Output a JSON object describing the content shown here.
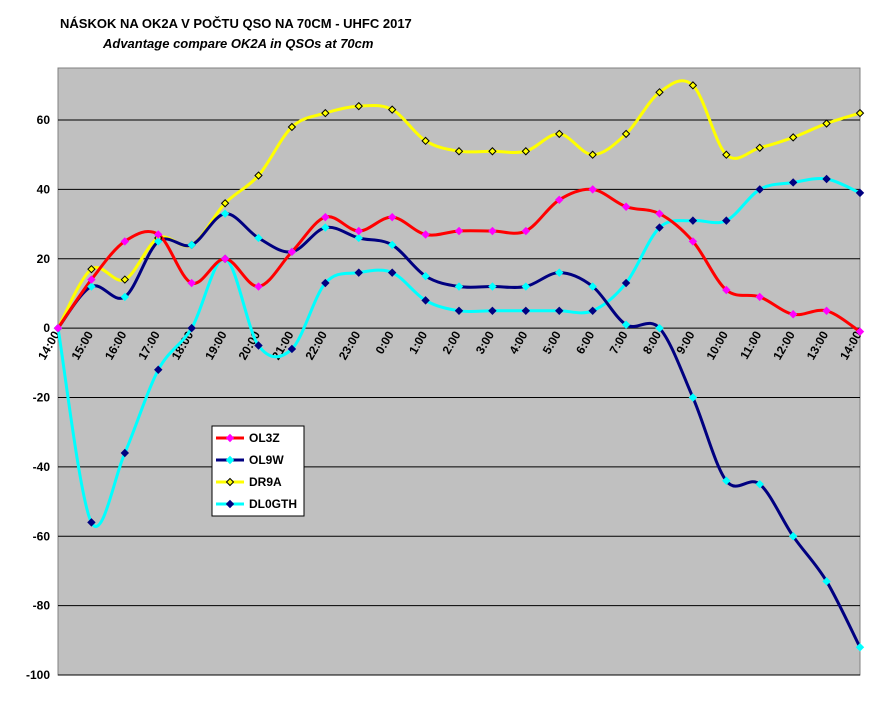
{
  "chart_data": {
    "type": "line",
    "title": "NÁSKOK NA OK2A V POČTU QSO NA 70CM - UHFC 2017",
    "subtitle": "Advantage compare OK2A in QSOs at 70cm",
    "categories": [
      "14:00",
      "15:00",
      "16:00",
      "17:00",
      "18:00",
      "19:00",
      "20:00",
      "21:00",
      "22:00",
      "23:00",
      "0:00",
      "1:00",
      "2:00",
      "3:00",
      "4:00",
      "5:00",
      "6:00",
      "7:00",
      "8:00",
      "9:00",
      "10:00",
      "11:00",
      "12:00",
      "13:00",
      "14:00"
    ],
    "yticks": [
      60,
      40,
      20,
      0,
      -20,
      -40,
      -60,
      -80,
      -100
    ],
    "ylim": [
      -100,
      75
    ],
    "grid": true,
    "legend_position": "center-left",
    "series": [
      {
        "name": "OL3Z",
        "color": "#ff0000",
        "marker_color": "#ff00ff",
        "values": [
          0,
          14,
          25,
          27,
          13,
          20,
          12,
          22,
          32,
          28,
          32,
          27,
          28,
          28,
          28,
          37,
          40,
          35,
          33,
          25,
          11,
          9,
          4,
          5,
          -1
        ]
      },
      {
        "name": "OL9W",
        "color": "#000080",
        "marker_color": "#00ffff",
        "values": [
          0,
          12,
          9,
          25,
          24,
          33,
          26,
          22,
          29,
          26,
          24,
          15,
          12,
          12,
          12,
          16,
          12,
          1,
          0,
          -20,
          -44,
          -45,
          -60,
          -73,
          -92
        ]
      },
      {
        "name": "DR9A",
        "color": "#ffff00",
        "marker_color": "#000000",
        "values": [
          0,
          17,
          14,
          26,
          24,
          36,
          44,
          58,
          62,
          64,
          63,
          54,
          51,
          51,
          51,
          56,
          50,
          56,
          68,
          70,
          50,
          52,
          55,
          59,
          62
        ]
      },
      {
        "name": "DL0GTH",
        "color": "#00ffff",
        "marker_color": "#000080",
        "values": [
          0,
          -56,
          -36,
          -12,
          0,
          20,
          -5,
          -6,
          13,
          16,
          16,
          8,
          5,
          5,
          5,
          5,
          5,
          13,
          29,
          31,
          31,
          40,
          42,
          43,
          39
        ]
      }
    ]
  }
}
